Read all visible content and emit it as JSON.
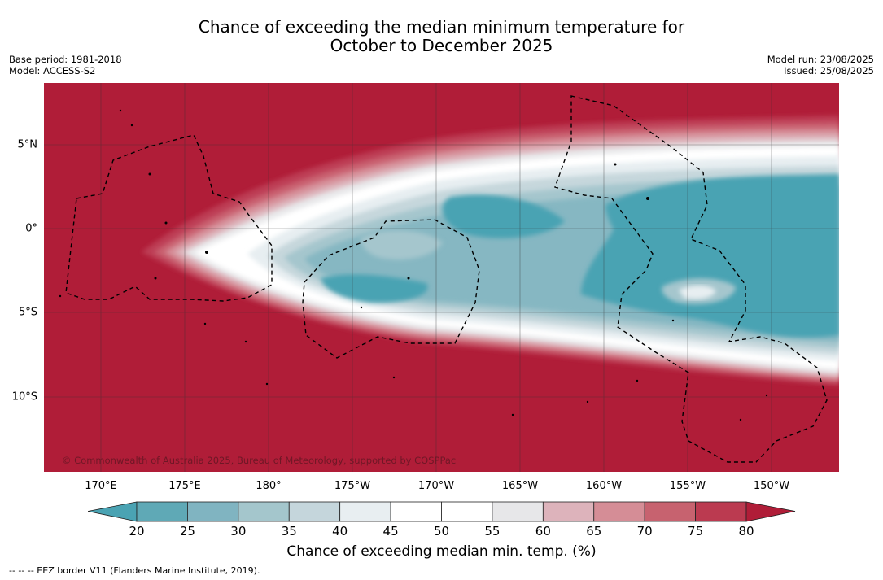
{
  "header": {
    "title_line1": "Chance of exceeding the median minimum temperature for",
    "title_line2": "October to December 2025",
    "base_period": "Base period: 1981-2018",
    "model": "Model: ACCESS-S2",
    "model_run": "Model run: 23/08/2025",
    "issued": "Issued: 25/08/2025"
  },
  "map": {
    "longitude_labels": [
      "170°E",
      "175°E",
      "180°",
      "175°W",
      "170°W",
      "165°W",
      "160°W",
      "155°W",
      "150°W"
    ],
    "latitude_labels": [
      "5°N",
      "0°",
      "5°S",
      "10°S"
    ],
    "copyright": "© Commonwealth of Australia 2025, Bureau of Meteorology, supported by COSPPac",
    "ocean_color": "#b01d38",
    "cool_color": "#4aa3b3"
  },
  "colorbar": {
    "ticks": [
      "20",
      "25",
      "30",
      "35",
      "40",
      "45",
      "50",
      "55",
      "60",
      "65",
      "70",
      "75",
      "80"
    ],
    "colors": [
      "#5fa9b6",
      "#80b4c1",
      "#a4c6cc",
      "#c5d6dc",
      "#e8eef1",
      "#ffffff",
      "#ffffff",
      "#e7e7e9",
      "#ddb3bb",
      "#d58d96",
      "#c7626f",
      "#bb3a50"
    ],
    "under_color": "#4aa3b3",
    "over_color": "#b01d38",
    "label": "Chance of exceeding median min. temp. (%)"
  },
  "footer": {
    "legend": "--  --  -- EEZ border V11 (Flanders Marine Institute, 2019)."
  }
}
